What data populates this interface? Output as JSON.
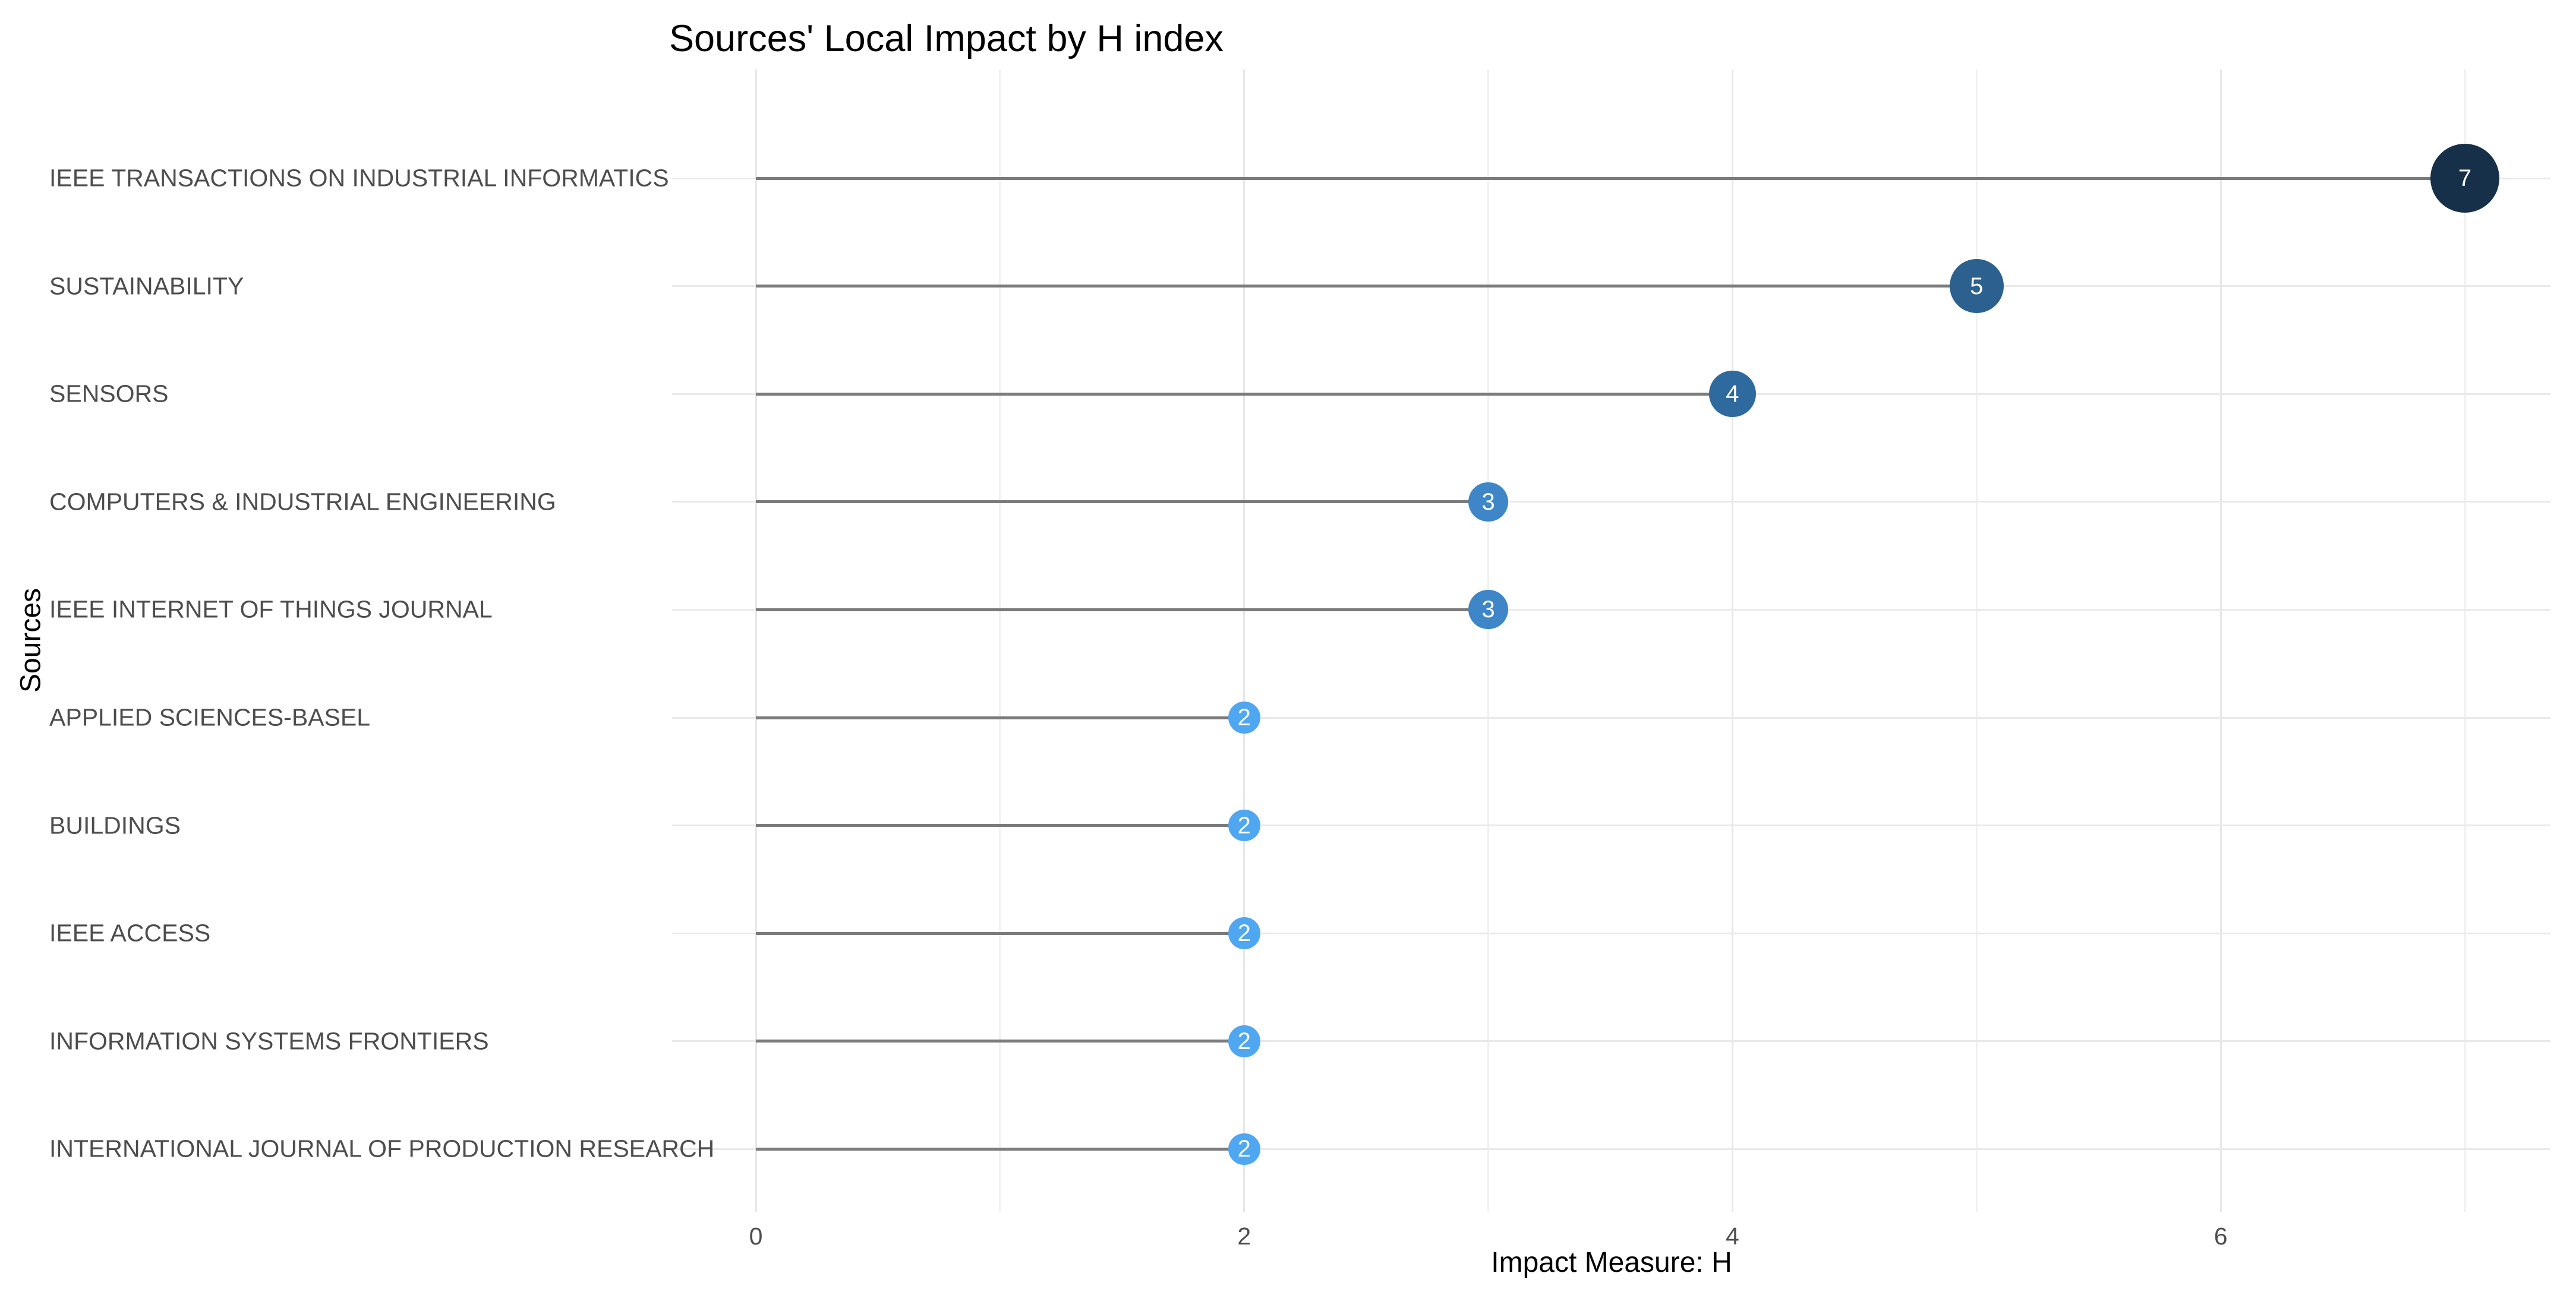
{
  "header": {
    "title": "Sources' Local Impact by H index"
  },
  "chart_data": {
    "type": "scatter",
    "variant": "lollipop",
    "title": "Sources' Local Impact by H index",
    "xlabel": "Impact Measure: H",
    "ylabel": "Sources",
    "categories": [
      "IEEE TRANSACTIONS ON INDUSTRIAL INFORMATICS",
      "SUSTAINABILITY",
      "SENSORS",
      "COMPUTERS & INDUSTRIAL ENGINEERING",
      "IEEE INTERNET OF THINGS JOURNAL",
      "APPLIED SCIENCES-BASEL",
      "BUILDINGS",
      "IEEE ACCESS",
      "INFORMATION SYSTEMS FRONTIERS",
      "INTERNATIONAL JOURNAL OF PRODUCTION RESEARCH"
    ],
    "values": [
      7,
      5,
      4,
      3,
      3,
      2,
      2,
      2,
      2,
      2
    ],
    "point_labels": [
      "7",
      "5",
      "4",
      "3",
      "3",
      "2",
      "2",
      "2",
      "2",
      "2"
    ],
    "x_major_ticks": [
      0,
      2,
      4,
      6
    ],
    "x_major_tick_labels": [
      "0",
      "2",
      "4",
      "6"
    ],
    "x_minor_ticks": [
      1,
      3,
      5,
      7
    ],
    "xlim": [
      -0.34,
      7.35
    ],
    "grid": true,
    "legend_position": "none",
    "colors": {
      "background": "#ffffff",
      "title_text": "#000000",
      "axis_text": "#4d4d4d",
      "grid_major": "#e7e7e7",
      "grid_minor": "#f1f1f1",
      "stem": "#7b7b7b",
      "point_label_text": "#ffffff",
      "point_fill_by_value": {
        "2": "#4fa6f1",
        "3": "#3e86c7",
        "4": "#2e6a9d",
        "5": "#2b608f",
        "7": "#16304a"
      }
    }
  }
}
